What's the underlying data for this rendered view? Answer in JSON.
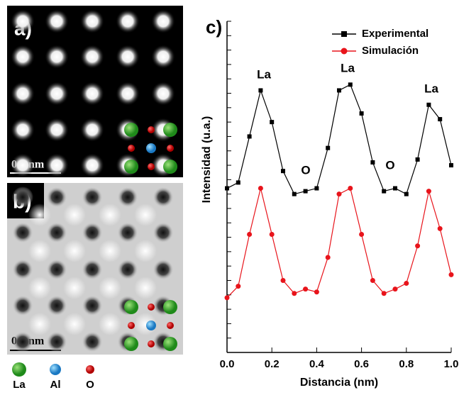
{
  "panels": {
    "a": {
      "label": "a)",
      "scale_bar": "0.5 nm"
    },
    "b": {
      "label": "b)",
      "scale_bar": "0.5 nm"
    }
  },
  "atom_legend": [
    "La",
    "Al",
    "O"
  ],
  "chart_data": {
    "type": "line",
    "panel_label": "c)",
    "xlabel": "Distancia (nm)",
    "ylabel": "Intensidad (u.a.)",
    "x": [
      0.0,
      0.05,
      0.1,
      0.15,
      0.2,
      0.25,
      0.3,
      0.35,
      0.4,
      0.45,
      0.5,
      0.55,
      0.6,
      0.65,
      0.7,
      0.75,
      0.8,
      0.85,
      0.9,
      0.95,
      1.0
    ],
    "series": [
      {
        "name": "Experimental",
        "color": "#000000",
        "marker": "square",
        "values": [
          57,
          59,
          75,
          91,
          80,
          63,
          55,
          56,
          57,
          71,
          91,
          93,
          83,
          66,
          56,
          57,
          55,
          67,
          86,
          81,
          65
        ]
      },
      {
        "name": "Simulación",
        "color": "#e8141b",
        "marker": "circle",
        "values": [
          19,
          23,
          41,
          57,
          41,
          25,
          20.5,
          22,
          21,
          33,
          55,
          57,
          41,
          25,
          20.5,
          22,
          24,
          37,
          56,
          43,
          27
        ]
      }
    ],
    "annotations": [
      "La",
      "La",
      "La",
      "O",
      "O"
    ],
    "xlim": [
      0,
      1
    ],
    "ylim": [
      0,
      115
    ],
    "xticks": [
      {
        "value": 0,
        "label": "0.0"
      },
      0.2,
      0.4,
      0.6,
      0.8,
      {
        "value": 1,
        "label": "1.0"
      }
    ],
    "yticks": [
      0,
      5,
      10,
      15,
      20,
      25,
      30,
      35,
      40,
      45,
      50,
      55,
      60,
      65,
      70,
      75,
      80,
      85,
      90,
      95,
      100,
      105,
      110,
      115
    ],
    "legend": "upper right"
  }
}
